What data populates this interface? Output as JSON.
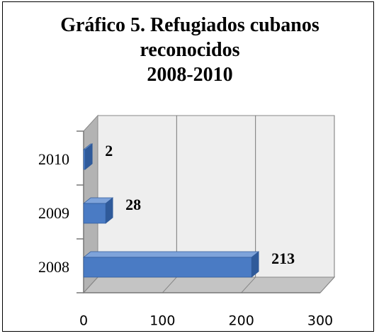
{
  "chart_data": {
    "type": "bar3d_horizontal",
    "title": "Gráfico 5. Refugiados cubanos reconocidos",
    "subtitle": "2008-2010",
    "categories": [
      "2008",
      "2009",
      "2010"
    ],
    "values": [
      213,
      28,
      2
    ],
    "color": "#4a7bc4",
    "xlim": [
      0,
      300
    ],
    "xticks": [
      0,
      100,
      200,
      300
    ],
    "grid": true
  }
}
